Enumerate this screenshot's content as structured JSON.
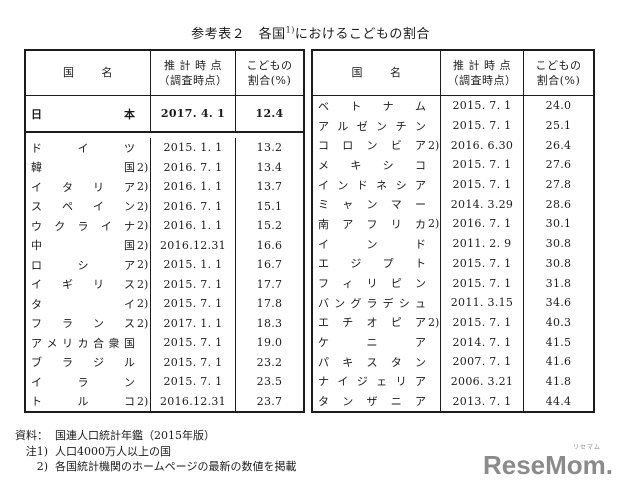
{
  "title": {
    "prefix": "参考表２　各国",
    "sup": "1)",
    "suffix": "におけるこどもの割合"
  },
  "tables": [
    {
      "id": "table-left",
      "header": {
        "country": "国名",
        "date_line1": "推 計 時 点",
        "date_line2": "（調査時点）",
        "ratio_line1": "こどもの",
        "ratio_line2": "割合(%)"
      },
      "rows": [
        {
          "name": "日本",
          "suffix": "",
          "date": "2017. 4. 1",
          "value": "12.4",
          "highlight": true
        },
        {
          "name": "ドイツ",
          "suffix": "",
          "date": "2015. 1. 1",
          "value": "13.2"
        },
        {
          "name": "韓国",
          "suffix": "2)",
          "date": "2016. 7. 1",
          "value": "13.4"
        },
        {
          "name": "イタリア",
          "suffix": "2)",
          "date": "2016. 1. 1",
          "value": "13.7"
        },
        {
          "name": "スペイン",
          "suffix": "2)",
          "date": "2016. 7. 1",
          "value": "15.1"
        },
        {
          "name": "ウクライナ",
          "suffix": "2)",
          "date": "2016. 1. 1",
          "value": "15.2"
        },
        {
          "name": "中国",
          "suffix": "2)",
          "date": "2016.12.31",
          "value": "16.6"
        },
        {
          "name": "ロシア",
          "suffix": "2)",
          "date": "2015. 1. 1",
          "value": "16.7"
        },
        {
          "name": "イギリス",
          "suffix": "2)",
          "date": "2015. 7. 1",
          "value": "17.7"
        },
        {
          "name": "タイ",
          "suffix": "2)",
          "date": "2015. 7. 1",
          "value": "17.8"
        },
        {
          "name": "フランス",
          "suffix": "2)",
          "date": "2017. 1. 1",
          "value": "18.3"
        },
        {
          "name": "アメリカ合衆国",
          "suffix": "",
          "date": "2015. 7. 1",
          "value": "19.0"
        },
        {
          "name": "ブラジル",
          "suffix": "",
          "date": "2015. 7. 1",
          "value": "23.2"
        },
        {
          "name": "イラン",
          "suffix": "",
          "date": "2015. 7. 1",
          "value": "23.5"
        },
        {
          "name": "トルコ",
          "suffix": "2)",
          "date": "2016.12.31",
          "value": "23.7"
        }
      ]
    },
    {
      "id": "table-right",
      "header": {
        "country": "国名",
        "date_line1": "推 計 時 点",
        "date_line2": "（調査時点）",
        "ratio_line1": "こどもの",
        "ratio_line2": "割合(%)"
      },
      "rows": [
        {
          "name": "ベトナム",
          "suffix": "",
          "date": "2015. 7. 1",
          "value": "24.0"
        },
        {
          "name": "アルゼンチン",
          "suffix": "",
          "date": "2015. 7. 1",
          "value": "25.1"
        },
        {
          "name": "コロンビア",
          "suffix": "2)",
          "date": "2016. 6.30",
          "value": "26.4"
        },
        {
          "name": "メキシコ",
          "suffix": "",
          "date": "2015. 7. 1",
          "value": "27.6"
        },
        {
          "name": "インドネシア",
          "suffix": "",
          "date": "2015. 7. 1",
          "value": "27.8"
        },
        {
          "name": "ミャンマー",
          "suffix": "",
          "date": "2014. 3.29",
          "value": "28.6"
        },
        {
          "name": "南アフリカ",
          "suffix": "2)",
          "date": "2016. 7. 1",
          "value": "30.1"
        },
        {
          "name": "インド",
          "suffix": "",
          "date": "2011. 2. 9",
          "value": "30.8"
        },
        {
          "name": "エジプト",
          "suffix": "",
          "date": "2015. 7. 1",
          "value": "30.8"
        },
        {
          "name": "フィリピン",
          "suffix": "",
          "date": "2015. 7. 1",
          "value": "31.8"
        },
        {
          "name": "バングラデシュ",
          "suffix": "",
          "date": "2011. 3.15",
          "value": "34.6"
        },
        {
          "name": "エチオピア",
          "suffix": "2)",
          "date": "2015. 7. 1",
          "value": "40.3"
        },
        {
          "name": "ケニア",
          "suffix": "",
          "date": "2014. 7. 1",
          "value": "41.5"
        },
        {
          "name": "パキスタン",
          "suffix": "",
          "date": "2007. 7. 1",
          "value": "41.6"
        },
        {
          "name": "ナイジェリア",
          "suffix": "",
          "date": "2006. 3.21",
          "value": "41.8"
        },
        {
          "name": "タンザニア",
          "suffix": "",
          "date": "2013. 7. 1",
          "value": "44.4"
        }
      ]
    }
  ],
  "footer": {
    "lines": [
      {
        "label": "資料：",
        "text": "国連人口統計年鑑（2015年版）"
      },
      {
        "label": "注1)",
        "text": "人口4000万人以上の国"
      },
      {
        "label": "2)",
        "text": "各国統計機関のホームページの最新の数値を掲載"
      }
    ]
  },
  "logo": {
    "text": "ReseMom.",
    "ruby": "リセマム",
    "color": "#8b8b8b"
  }
}
